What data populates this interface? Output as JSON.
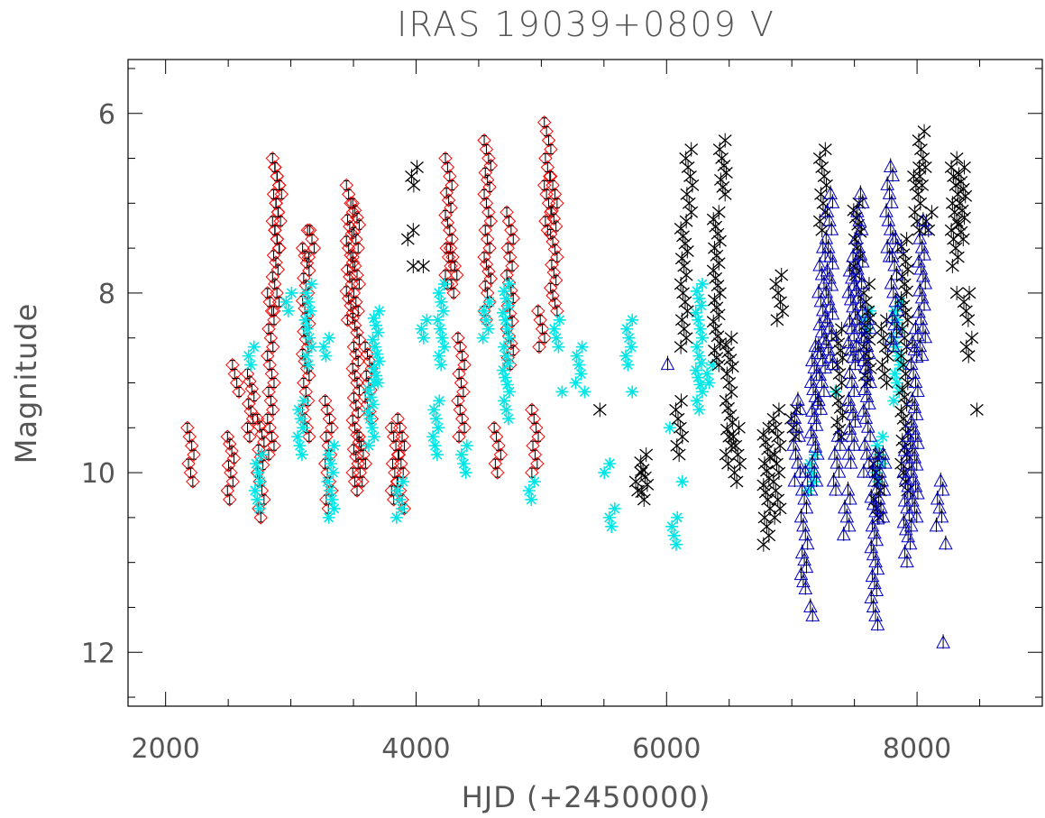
{
  "chart_data": {
    "type": "scatter",
    "title": "IRAS 19039+0809 V",
    "xlabel": "HJD (+2450000)",
    "ylabel": "Magnitude",
    "xlim": [
      1700,
      9000
    ],
    "ylim": [
      12.6,
      5.4
    ],
    "y_inverted": true,
    "x_ticks": [
      2000,
      4000,
      6000,
      8000
    ],
    "x_tick_labels": [
      "2000",
      "4000",
      "6000",
      "8000"
    ],
    "y_ticks": [
      6,
      8,
      10,
      12
    ],
    "y_tick_labels": [
      "6",
      "8",
      "10",
      "12"
    ],
    "grid": false,
    "series": [
      {
        "marker": "diamond",
        "color": "#ff0000",
        "error_color": "#000000",
        "clusters": [
          {
            "x": 2200,
            "y": [
              9.5,
              9.8,
              10.0,
              10.1
            ]
          },
          {
            "x": 2520,
            "y": [
              10.0,
              10.3,
              9.6
            ]
          },
          {
            "x": 2560,
            "y": [
              8.8,
              8.9,
              9.0,
              9.1
            ]
          },
          {
            "x": 2680,
            "y": [
              8.9,
              9.4,
              9.6
            ]
          },
          {
            "x": 2760,
            "y": [
              9.4,
              10.0,
              10.3,
              10.5
            ]
          },
          {
            "x": 2840,
            "y": [
              8.0,
              8.3,
              8.7,
              9.0,
              9.3,
              9.6,
              9.8
            ]
          },
          {
            "x": 2880,
            "y": [
              6.5,
              6.8,
              7.1,
              7.3,
              7.5,
              7.9,
              8.2
            ]
          },
          {
            "x": 2900,
            "y": [
              6.6,
              6.9,
              7.2,
              7.5
            ]
          },
          {
            "x": 3120,
            "y": [
              7.5,
              8.0,
              8.6,
              9.0,
              9.3,
              9.6
            ]
          },
          {
            "x": 3160,
            "y": [
              7.3,
              7.3,
              7.5,
              7.6
            ]
          },
          {
            "x": 3300,
            "y": [
              9.2,
              9.5,
              9.8,
              10.2,
              10.4
            ]
          },
          {
            "x": 3470,
            "y": [
              6.8,
              7.1,
              7.5,
              7.9,
              8.3
            ]
          },
          {
            "x": 3520,
            "y": [
              7.0,
              7.4,
              7.8,
              8.2,
              8.6,
              9.0,
              9.5,
              9.9,
              10.2
            ]
          },
          {
            "x": 3570,
            "y": [
              9.6,
              9.9,
              10.1
            ]
          },
          {
            "x": 3620,
            "y": [
              8.6,
              9.0,
              9.4
            ]
          },
          {
            "x": 3830,
            "y": [
              9.5,
              9.8,
              10.0,
              10.3
            ]
          },
          {
            "x": 3880,
            "y": [
              9.4,
              9.6,
              9.9,
              10.2,
              10.4
            ]
          },
          {
            "x": 4260,
            "y": [
              6.5,
              6.8,
              7.3,
              7.6,
              7.9
            ]
          },
          {
            "x": 4300,
            "y": [
              7.5,
              7.8,
              8.0,
              7.6
            ]
          },
          {
            "x": 4360,
            "y": [
              8.5,
              8.8,
              9.1,
              9.4,
              9.6
            ]
          },
          {
            "x": 4570,
            "y": [
              6.3,
              6.5,
              6.9,
              7.2,
              7.6,
              8.0,
              8.3
            ]
          },
          {
            "x": 4650,
            "y": [
              9.5,
              9.7,
              9.8,
              9.9,
              10.0
            ]
          },
          {
            "x": 4750,
            "y": [
              7.1,
              7.4,
              7.8,
              8.4,
              8.8
            ]
          },
          {
            "x": 4950,
            "y": [
              9.3,
              9.6,
              9.9,
              10.0
            ]
          },
          {
            "x": 5000,
            "y": [
              8.2,
              8.4,
              8.6
            ]
          },
          {
            "x": 5050,
            "y": [
              6.1,
              6.3,
              6.5,
              6.8,
              7.0,
              7.3
            ]
          },
          {
            "x": 5100,
            "y": [
              6.7,
              7.0,
              7.6,
              8.2
            ]
          }
        ]
      },
      {
        "marker": "asterisk",
        "color": "#00e5e5",
        "clusters": [
          {
            "x": 2680,
            "y": [
              8.6,
              8.8
            ]
          },
          {
            "x": 2740,
            "y": [
              9.8,
              10.0,
              10.2,
              10.4
            ]
          },
          {
            "x": 2980,
            "y": [
              8.0,
              8.2
            ]
          },
          {
            "x": 3080,
            "y": [
              9.2,
              9.5,
              9.8
            ]
          },
          {
            "x": 3140,
            "y": [
              7.9,
              8.2,
              8.5,
              8.8
            ]
          },
          {
            "x": 3280,
            "y": [
              8.5,
              8.7
            ]
          },
          {
            "x": 3320,
            "y": [
              9.7,
              10.0,
              10.2,
              10.4,
              10.5
            ]
          },
          {
            "x": 3640,
            "y": [
              9.0,
              9.4,
              9.7
            ]
          },
          {
            "x": 3680,
            "y": [
              8.2,
              8.6,
              9.0
            ]
          },
          {
            "x": 3870,
            "y": [
              10.1,
              10.3,
              10.5
            ]
          },
          {
            "x": 4060,
            "y": [
              8.3,
              8.5
            ]
          },
          {
            "x": 4160,
            "y": [
              9.2,
              9.5,
              9.8
            ]
          },
          {
            "x": 4200,
            "y": [
              7.9,
              8.2,
              8.5,
              8.8
            ]
          },
          {
            "x": 4380,
            "y": [
              9.7,
              9.9,
              10.0
            ]
          },
          {
            "x": 4560,
            "y": [
              8.1,
              8.3,
              8.5
            ]
          },
          {
            "x": 4720,
            "y": [
              7.9,
              8.3,
              8.7,
              9.1,
              9.4
            ]
          },
          {
            "x": 4920,
            "y": [
              10.1,
              10.3
            ]
          },
          {
            "x": 5120,
            "y": [
              8.3,
              8.6
            ]
          },
          {
            "x": 5140,
            "y": [
              9.1
            ]
          },
          {
            "x": 5300,
            "y": [
              8.6,
              8.8,
              9.0
            ]
          },
          {
            "x": 5320,
            "y": [
              9.1
            ]
          },
          {
            "x": 5520,
            "y": [
              9.9,
              10.0
            ]
          },
          {
            "x": 5560,
            "y": [
              10.4,
              10.6
            ]
          },
          {
            "x": 5700,
            "y": [
              8.3,
              8.5,
              8.7,
              8.8
            ]
          },
          {
            "x": 5700,
            "y": [
              9.1
            ]
          },
          {
            "x": 6000,
            "y": [
              9.5
            ]
          },
          {
            "x": 6060,
            "y": [
              10.5,
              10.7,
              10.8
            ]
          },
          {
            "x": 6100,
            "y": [
              10.1
            ]
          },
          {
            "x": 6260,
            "y": [
              7.9,
              8.3,
              8.7,
              9.1,
              9.3
            ]
          },
          {
            "x": 6340,
            "y": [
              8.8,
              9.0
            ]
          },
          {
            "x": 7160,
            "y": [
              9.8,
              10.0,
              10.2
            ]
          },
          {
            "x": 7320,
            "y": [
              9.1
            ]
          },
          {
            "x": 7600,
            "y": [
              8.2,
              8.4
            ]
          },
          {
            "x": 7700,
            "y": [
              9.6,
              9.9,
              10.1
            ]
          },
          {
            "x": 7840,
            "y": [
              8.1,
              8.4,
              8.7,
              9.0,
              9.2
            ]
          }
        ]
      },
      {
        "marker": "cross",
        "color": "#000000",
        "clusters": [
          {
            "x": 3960,
            "y": [
              7.3,
              7.4
            ]
          },
          {
            "x": 3990,
            "y": [
              6.6,
              6.8
            ]
          },
          {
            "x": 3960,
            "y": [
              7.7
            ]
          },
          {
            "x": 4040,
            "y": [
              7.7
            ]
          },
          {
            "x": 5450,
            "y": [
              9.3
            ]
          },
          {
            "x": 5780,
            "y": [
              10.0,
              10.2
            ]
          },
          {
            "x": 5820,
            "y": [
              9.8,
              10.3
            ]
          },
          {
            "x": 6140,
            "y": [
              7.2,
              7.7,
              8.0,
              8.3,
              8.6
            ]
          },
          {
            "x": 6180,
            "y": [
              6.4,
              6.6,
              6.8,
              7.1
            ]
          },
          {
            "x": 6100,
            "y": [
              9.2,
              9.5,
              9.8
            ]
          },
          {
            "x": 6400,
            "y": [
              7.1,
              7.5,
              8.0,
              8.4,
              8.8
            ]
          },
          {
            "x": 6450,
            "y": [
              6.3,
              6.5,
              6.9
            ]
          },
          {
            "x": 6500,
            "y": [
              8.5,
              8.9,
              9.2,
              9.6,
              9.9
            ]
          },
          {
            "x": 6560,
            "y": [
              9.5,
              9.8,
              10.0,
              10.1
            ]
          },
          {
            "x": 6800,
            "y": [
              9.5,
              9.9,
              10.3,
              10.6,
              10.8
            ]
          },
          {
            "x": 6880,
            "y": [
              9.3,
              9.6,
              9.9,
              10.2,
              10.5
            ]
          },
          {
            "x": 6900,
            "y": [
              7.8,
              8.1,
              8.3
            ]
          },
          {
            "x": 7020,
            "y": [
              9.3,
              9.6
            ]
          },
          {
            "x": 7250,
            "y": [
              6.4,
              6.7,
              7.0,
              7.3
            ]
          },
          {
            "x": 7380,
            "y": [
              8.4,
              8.8,
              9.2,
              9.6
            ]
          },
          {
            "x": 7520,
            "y": [
              7.0,
              7.4,
              7.8
            ]
          },
          {
            "x": 7600,
            "y": [
              7.9,
              8.2,
              8.6,
              9.0
            ]
          },
          {
            "x": 7680,
            "y": [
              9.8,
              10.2,
              10.5
            ]
          },
          {
            "x": 7740,
            "y": [
              8.3,
              8.7,
              9.0
            ]
          },
          {
            "x": 7900,
            "y": [
              7.4,
              7.9,
              8.3,
              8.7,
              9.0,
              9.4,
              9.8,
              10.2
            ]
          },
          {
            "x": 8000,
            "y": [
              6.6,
              6.9,
              7.3
            ]
          },
          {
            "x": 8040,
            "y": [
              6.2,
              6.5,
              6.8
            ]
          },
          {
            "x": 8100,
            "y": [
              7.1,
              7.3
            ]
          },
          {
            "x": 8300,
            "y": [
              6.5,
              6.7,
              6.9,
              7.2,
              7.4,
              7.7
            ]
          },
          {
            "x": 8300,
            "y": [
              8.0
            ]
          },
          {
            "x": 8360,
            "y": [
              6.6,
              7.0,
              7.4
            ]
          },
          {
            "x": 8400,
            "y": [
              8.0,
              8.3
            ]
          },
          {
            "x": 8420,
            "y": [
              8.5,
              8.7
            ]
          },
          {
            "x": 8460,
            "y": [
              9.3
            ]
          }
        ]
      },
      {
        "marker": "triangle",
        "color": "#0000cc",
        "clusters": [
          {
            "x": 6000,
            "y": [
              8.8
            ]
          },
          {
            "x": 7040,
            "y": [
              9.2,
              9.5,
              9.8,
              10.1
            ]
          },
          {
            "x": 7100,
            "y": [
              10.0,
              10.3,
              10.6,
              10.9,
              11.3
            ]
          },
          {
            "x": 7140,
            "y": [
              11.5,
              11.6
            ]
          },
          {
            "x": 7180,
            "y": [
              8.6,
              9.0,
              9.4,
              9.8,
              10.2
            ]
          },
          {
            "x": 7240,
            "y": [
              7.5,
              7.8,
              8.2,
              8.6,
              9.0,
              9.3
            ]
          },
          {
            "x": 7300,
            "y": [
              6.9,
              7.2,
              7.6,
              8.0,
              8.4,
              8.8
            ]
          },
          {
            "x": 7360,
            "y": [
              9.6,
              9.9,
              10.2
            ]
          },
          {
            "x": 7440,
            "y": [
              10.2,
              10.5,
              10.7
            ]
          },
          {
            "x": 7480,
            "y": [
              7.6,
              8.0,
              8.4,
              8.8,
              9.2,
              9.6,
              9.9
            ]
          },
          {
            "x": 7540,
            "y": [
              6.9,
              7.2,
              7.5,
              7.9,
              8.3,
              8.7
            ]
          },
          {
            "x": 7600,
            "y": [
              8.3,
              8.6,
              9.0,
              9.4,
              9.7,
              10.0
            ]
          },
          {
            "x": 7660,
            "y": [
              9.8,
              10.2,
              10.6,
              11.0,
              11.4,
              11.7
            ]
          },
          {
            "x": 7720,
            "y": [
              9.8,
              10.2,
              10.5
            ]
          },
          {
            "x": 7780,
            "y": [
              6.6,
              6.9,
              7.3,
              7.6
            ]
          },
          {
            "x": 7820,
            "y": [
              7.4,
              7.8,
              8.2,
              8.6
            ]
          },
          {
            "x": 7920,
            "y": [
              9.6,
              10.0,
              10.4,
              10.8,
              11.0
            ]
          },
          {
            "x": 7980,
            "y": [
              8.4,
              8.8,
              9.2,
              9.6,
              10.0,
              10.4,
              10.6
            ]
          },
          {
            "x": 8040,
            "y": [
              7.2,
              7.5,
              7.9,
              8.3,
              8.7
            ]
          },
          {
            "x": 8180,
            "y": [
              10.1,
              10.4,
              10.6
            ]
          },
          {
            "x": 8220,
            "y": [
              10.8
            ]
          },
          {
            "x": 8200,
            "y": [
              11.9
            ]
          }
        ]
      }
    ]
  }
}
